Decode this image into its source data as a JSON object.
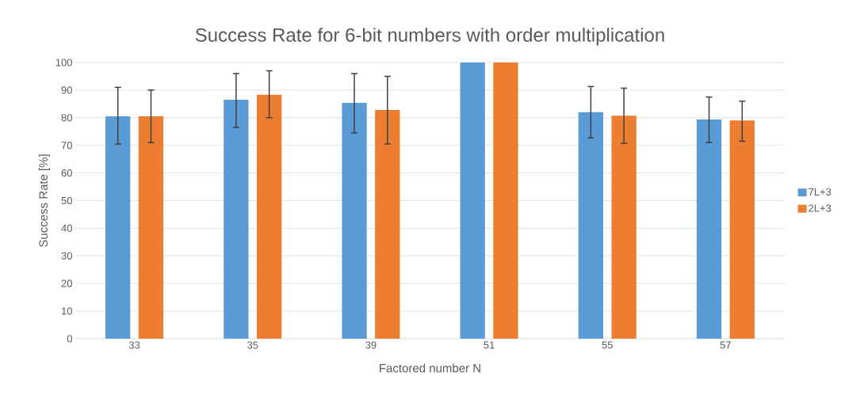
{
  "chart_data": {
    "type": "bar",
    "title": "Success Rate for 6-bit numbers with order multiplication",
    "xlabel": "Factored number N",
    "ylabel": "Success Rate [%]",
    "categories": [
      "33",
      "35",
      "39",
      "51",
      "55",
      "57"
    ],
    "series": [
      {
        "name": "7L+3",
        "color": "#5b9bd5",
        "values": [
          80.5,
          86.5,
          85.4,
          100,
          82,
          79.4
        ],
        "errors": [
          [
            70.5,
            91
          ],
          [
            76.5,
            96
          ],
          [
            74.5,
            96
          ],
          null,
          [
            72.7,
            91.3
          ],
          [
            71,
            87.5
          ]
        ]
      },
      {
        "name": "2L+3",
        "color": "#ed7d31",
        "values": [
          80.5,
          88.3,
          82.8,
          100,
          80.7,
          79
        ],
        "errors": [
          [
            71,
            90
          ],
          [
            80,
            97
          ],
          [
            70.5,
            95
          ],
          null,
          [
            70.7,
            90.7
          ],
          [
            71.5,
            86
          ]
        ]
      }
    ],
    "ylim": [
      0,
      100
    ],
    "yticks": [
      0,
      10,
      20,
      30,
      40,
      50,
      60,
      70,
      80,
      90,
      100
    ],
    "grid": "y",
    "legend": "right"
  }
}
